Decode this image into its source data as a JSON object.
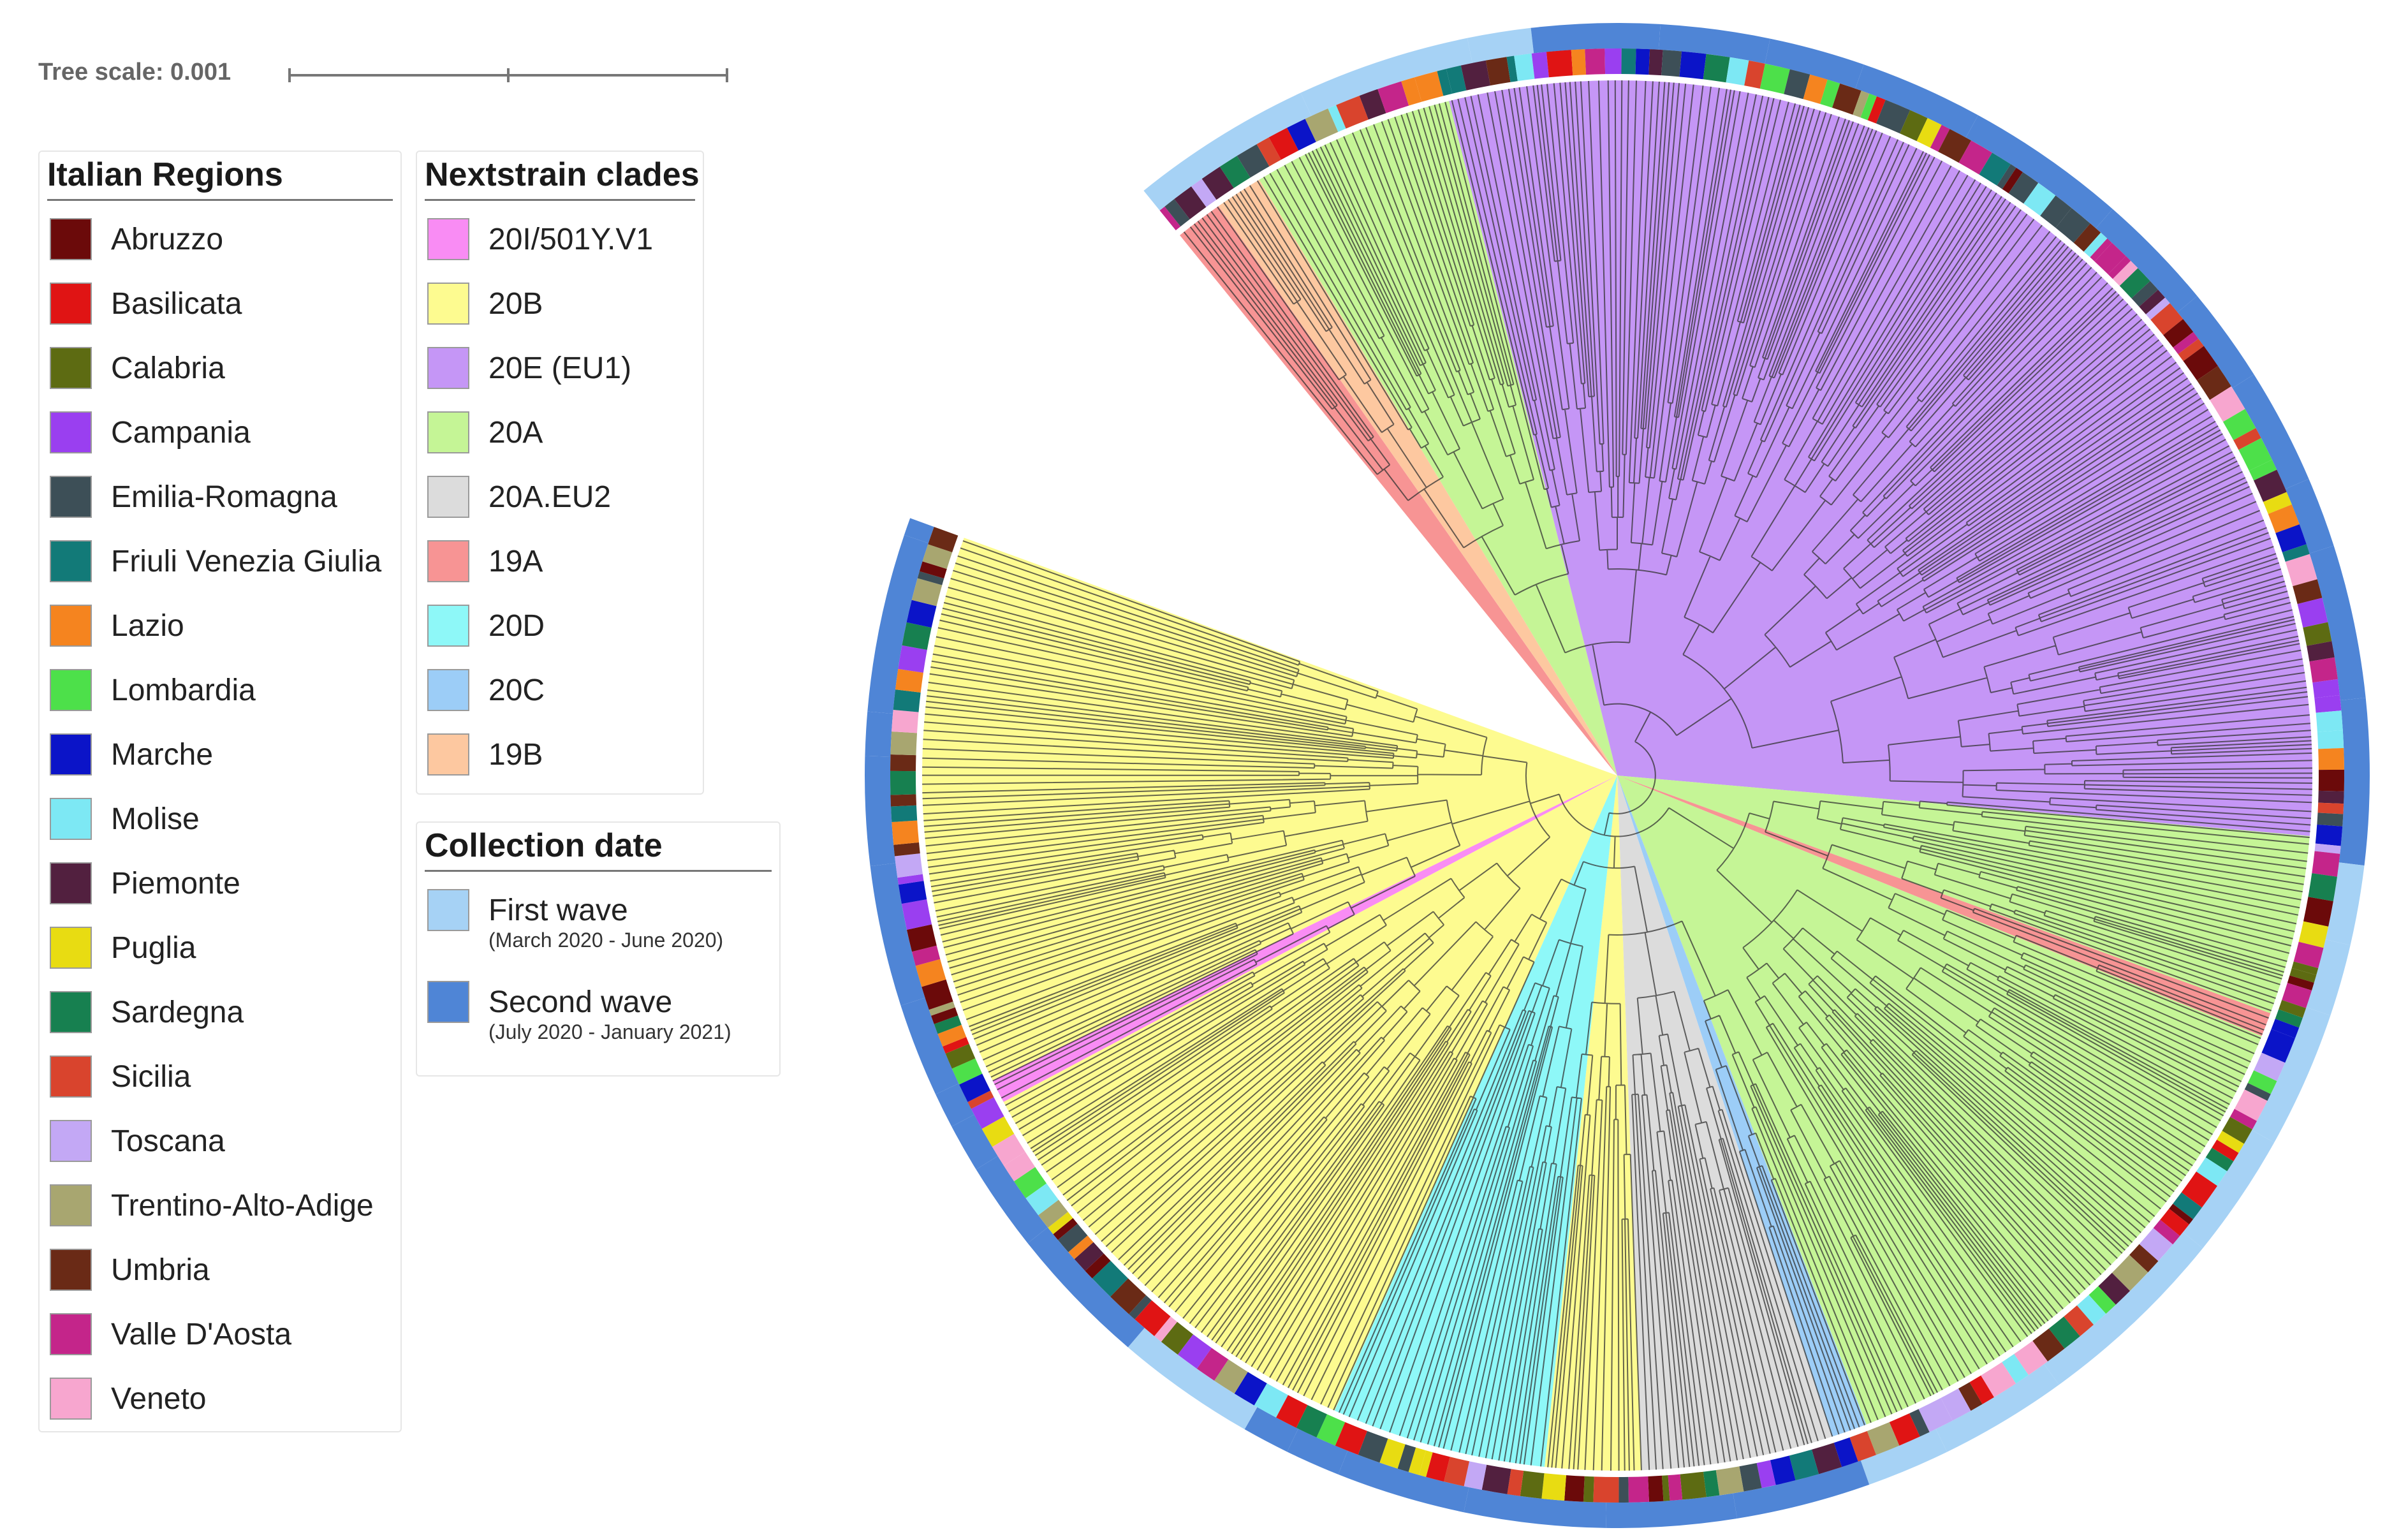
{
  "tree_scale": {
    "label": "Tree scale: 0.001"
  },
  "regions": {
    "title": "Italian Regions",
    "items": [
      {
        "label": "Abruzzo",
        "color": "#6b0a0a"
      },
      {
        "label": "Basilicata",
        "color": "#e01414"
      },
      {
        "label": "Calabria",
        "color": "#5d6b12"
      },
      {
        "label": "Campania",
        "color": "#9a3ff0"
      },
      {
        "label": "Emilia-Romagna",
        "color": "#3d4f57"
      },
      {
        "label": "Friuli Venezia Giulia",
        "color": "#127a78"
      },
      {
        "label": "Lazio",
        "color": "#f5841f"
      },
      {
        "label": "Lombardia",
        "color": "#4de04a"
      },
      {
        "label": "Marche",
        "color": "#0b14c8"
      },
      {
        "label": "Molise",
        "color": "#7de8f4"
      },
      {
        "label": "Piemonte",
        "color": "#52203f"
      },
      {
        "label": "Puglia",
        "color": "#e8dc12"
      },
      {
        "label": "Sardegna",
        "color": "#178050"
      },
      {
        "label": "Sicilia",
        "color": "#d9442d"
      },
      {
        "label": "Toscana",
        "color": "#c3a8f5"
      },
      {
        "label": "Trentino-Alto-Adige",
        "color": "#a8a670"
      },
      {
        "label": "Umbria",
        "color": "#6a2a16"
      },
      {
        "label": "Valle D'Aosta",
        "color": "#c4258a"
      },
      {
        "label": "Veneto",
        "color": "#f7a6cf"
      }
    ]
  },
  "clades": {
    "title": "Nextstrain clades",
    "items": [
      {
        "label": "20I/501Y.V1",
        "color": "#f98cf4"
      },
      {
        "label": "20B",
        "color": "#fdfb90"
      },
      {
        "label": "20E (EU1)",
        "color": "#c596f6"
      },
      {
        "label": "20A",
        "color": "#c5f596"
      },
      {
        "label": "20A.EU2",
        "color": "#dcdcdc"
      },
      {
        "label": "19A",
        "color": "#f79494"
      },
      {
        "label": "20D",
        "color": "#8ef8f8"
      },
      {
        "label": "20C",
        "color": "#9ccdf7"
      },
      {
        "label": "19B",
        "color": "#fdc8a0"
      }
    ]
  },
  "collection": {
    "title": "Collection date",
    "items": [
      {
        "label": "First wave",
        "sublabel": "(March 2020 - June 2020)",
        "color": "#a6d2f5"
      },
      {
        "label": "Second wave",
        "sublabel": "(July 2020 - January 2021)",
        "color": "#4f85d6"
      }
    ]
  }
}
